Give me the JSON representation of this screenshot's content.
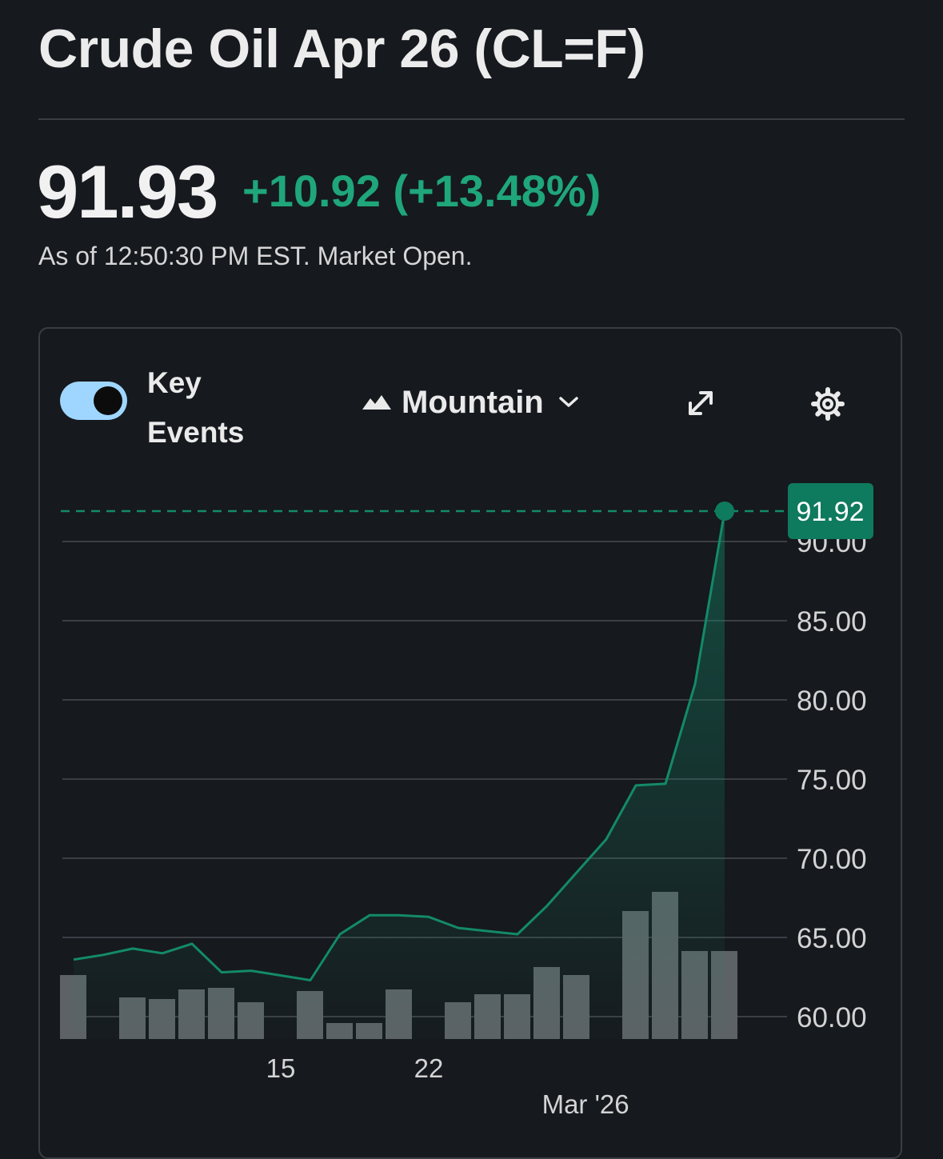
{
  "header": {
    "title": "Crude Oil Apr 26 (CL=F)",
    "price": "91.93",
    "change": "+10.92 (+13.48%)",
    "as_of": "As of 12:50:30 PM EST. Market Open."
  },
  "toolbar": {
    "key_events_line1": "Key",
    "key_events_line2": "Events",
    "key_events_on": true,
    "chart_type": "Mountain",
    "icons": [
      "mountain-icon",
      "chevron-down-icon",
      "expand-icon",
      "gear-icon"
    ]
  },
  "colors": {
    "up": "#1fa67a",
    "line": "#138a6a",
    "tag": "#0e7a5e",
    "volume": "#5d6266",
    "toggle": "#9fd6ff"
  },
  "chart_data": {
    "type": "area",
    "current_price_label": "91.92",
    "y_ticks": [
      "90.00",
      "85.00",
      "80.00",
      "75.00",
      "70.00",
      "65.00",
      "60.00"
    ],
    "x_tick_labels": [
      "15",
      "22",
      "Mar '26"
    ],
    "ylim": [
      60,
      91.92
    ],
    "prices": [
      63.6,
      63.9,
      64.3,
      64.0,
      64.6,
      62.8,
      62.9,
      62.6,
      62.3,
      65.2,
      66.4,
      66.4,
      66.3,
      65.6,
      65.4,
      65.2,
      67.0,
      69.1,
      71.2,
      74.6,
      74.7,
      81.0,
      91.92
    ],
    "volume": [
      4.0,
      null,
      2.6,
      2.5,
      3.1,
      3.2,
      2.3,
      null,
      3.0,
      1.0,
      1.0,
      3.1,
      null,
      2.3,
      2.8,
      2.8,
      4.5,
      4.0,
      null,
      8.0,
      9.2,
      5.5,
      5.5
    ]
  }
}
